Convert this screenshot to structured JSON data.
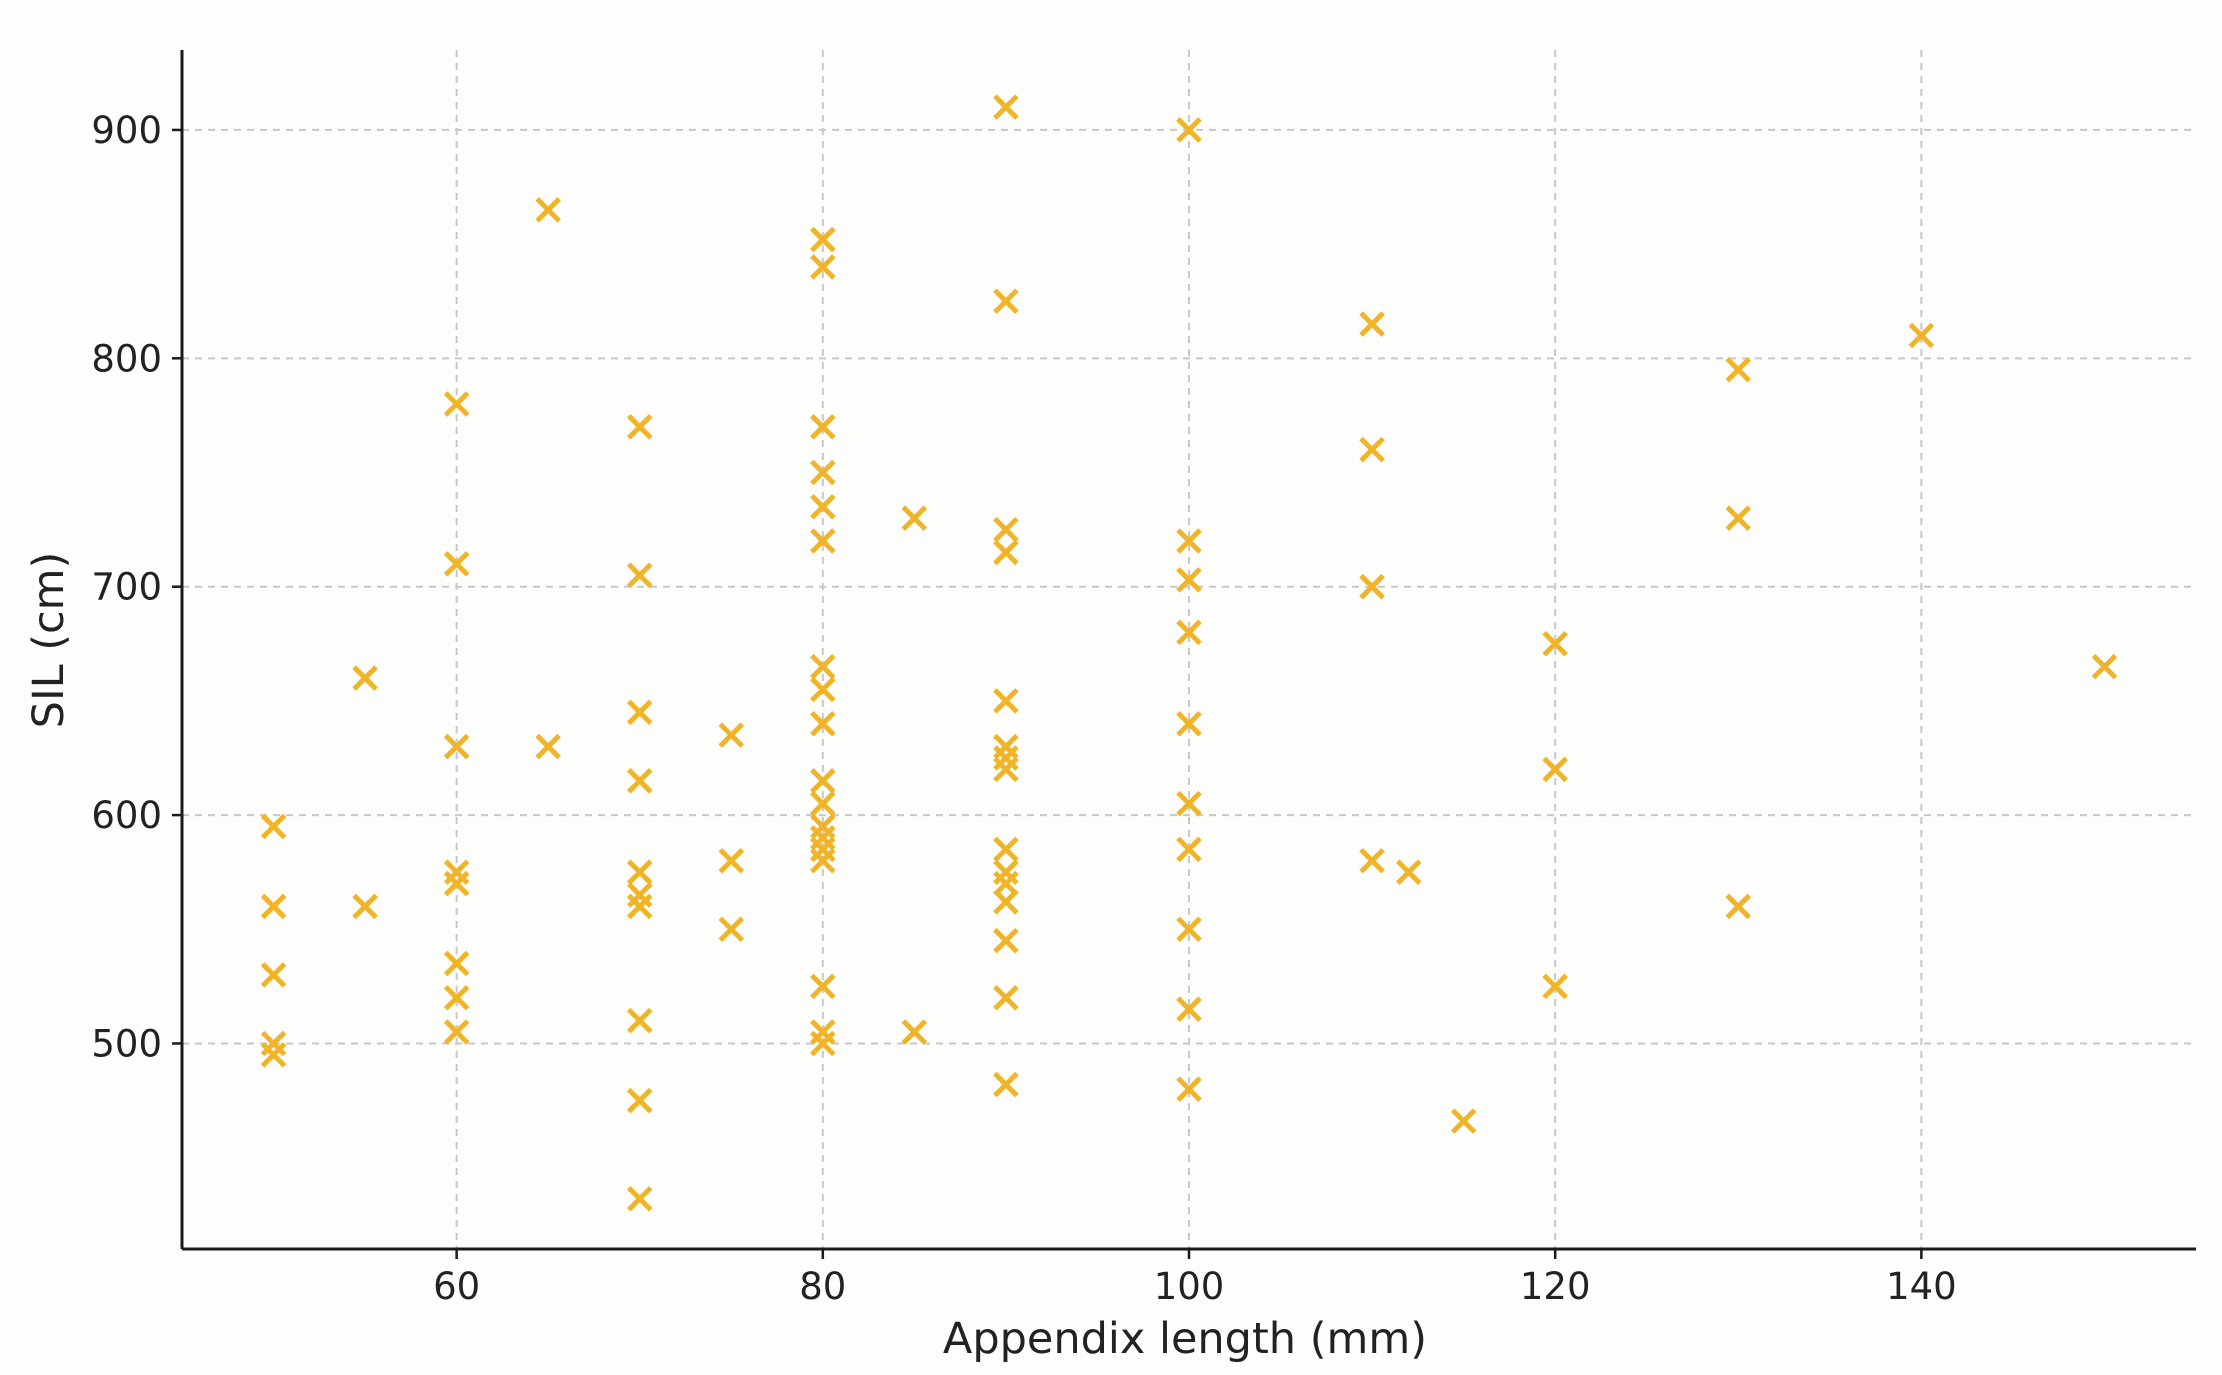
{
  "chart_data": {
    "type": "scatter",
    "title": "",
    "xlabel": "Appendix length (mm)",
    "ylabel": "SIL (cm)",
    "xlim": [
      45,
      155
    ],
    "ylim": [
      410,
      935
    ],
    "xticks": [
      60,
      80,
      100,
      120,
      140
    ],
    "yticks": [
      500,
      600,
      700,
      800,
      900
    ],
    "grid": true,
    "marker": "x",
    "color": "#f0b429",
    "points": [
      {
        "x": 50,
        "y": 595
      },
      {
        "x": 50,
        "y": 560
      },
      {
        "x": 50,
        "y": 530
      },
      {
        "x": 50,
        "y": 500
      },
      {
        "x": 50,
        "y": 495
      },
      {
        "x": 55,
        "y": 660
      },
      {
        "x": 55,
        "y": 560
      },
      {
        "x": 60,
        "y": 780
      },
      {
        "x": 60,
        "y": 710
      },
      {
        "x": 60,
        "y": 630
      },
      {
        "x": 60,
        "y": 575
      },
      {
        "x": 60,
        "y": 570
      },
      {
        "x": 60,
        "y": 535
      },
      {
        "x": 60,
        "y": 520
      },
      {
        "x": 60,
        "y": 505
      },
      {
        "x": 65,
        "y": 865
      },
      {
        "x": 65,
        "y": 630
      },
      {
        "x": 70,
        "y": 770
      },
      {
        "x": 70,
        "y": 705
      },
      {
        "x": 70,
        "y": 645
      },
      {
        "x": 70,
        "y": 615
      },
      {
        "x": 70,
        "y": 575
      },
      {
        "x": 70,
        "y": 565
      },
      {
        "x": 70,
        "y": 560
      },
      {
        "x": 70,
        "y": 510
      },
      {
        "x": 70,
        "y": 475
      },
      {
        "x": 70,
        "y": 432
      },
      {
        "x": 75,
        "y": 635
      },
      {
        "x": 75,
        "y": 580
      },
      {
        "x": 75,
        "y": 550
      },
      {
        "x": 80,
        "y": 852
      },
      {
        "x": 80,
        "y": 840
      },
      {
        "x": 80,
        "y": 770
      },
      {
        "x": 80,
        "y": 750
      },
      {
        "x": 80,
        "y": 735
      },
      {
        "x": 80,
        "y": 720
      },
      {
        "x": 80,
        "y": 665
      },
      {
        "x": 80,
        "y": 655
      },
      {
        "x": 80,
        "y": 640
      },
      {
        "x": 80,
        "y": 615
      },
      {
        "x": 80,
        "y": 605
      },
      {
        "x": 80,
        "y": 595
      },
      {
        "x": 80,
        "y": 590
      },
      {
        "x": 80,
        "y": 585
      },
      {
        "x": 80,
        "y": 580
      },
      {
        "x": 80,
        "y": 525
      },
      {
        "x": 80,
        "y": 505
      },
      {
        "x": 80,
        "y": 500
      },
      {
        "x": 85,
        "y": 730
      },
      {
        "x": 85,
        "y": 505
      },
      {
        "x": 90,
        "y": 910
      },
      {
        "x": 90,
        "y": 825
      },
      {
        "x": 90,
        "y": 725
      },
      {
        "x": 90,
        "y": 715
      },
      {
        "x": 90,
        "y": 650
      },
      {
        "x": 90,
        "y": 630
      },
      {
        "x": 90,
        "y": 625
      },
      {
        "x": 90,
        "y": 620
      },
      {
        "x": 90,
        "y": 585
      },
      {
        "x": 90,
        "y": 575
      },
      {
        "x": 90,
        "y": 570
      },
      {
        "x": 90,
        "y": 562
      },
      {
        "x": 90,
        "y": 545
      },
      {
        "x": 90,
        "y": 520
      },
      {
        "x": 90,
        "y": 482
      },
      {
        "x": 100,
        "y": 900
      },
      {
        "x": 100,
        "y": 720
      },
      {
        "x": 100,
        "y": 703
      },
      {
        "x": 100,
        "y": 680
      },
      {
        "x": 100,
        "y": 640
      },
      {
        "x": 100,
        "y": 605
      },
      {
        "x": 100,
        "y": 585
      },
      {
        "x": 100,
        "y": 550
      },
      {
        "x": 100,
        "y": 515
      },
      {
        "x": 100,
        "y": 480
      },
      {
        "x": 110,
        "y": 815
      },
      {
        "x": 110,
        "y": 760
      },
      {
        "x": 110,
        "y": 700
      },
      {
        "x": 110,
        "y": 580
      },
      {
        "x": 112,
        "y": 575
      },
      {
        "x": 115,
        "y": 466
      },
      {
        "x": 120,
        "y": 675
      },
      {
        "x": 120,
        "y": 620
      },
      {
        "x": 120,
        "y": 525
      },
      {
        "x": 130,
        "y": 795
      },
      {
        "x": 130,
        "y": 730
      },
      {
        "x": 130,
        "y": 560
      },
      {
        "x": 140,
        "y": 810
      },
      {
        "x": 150,
        "y": 665
      }
    ]
  }
}
